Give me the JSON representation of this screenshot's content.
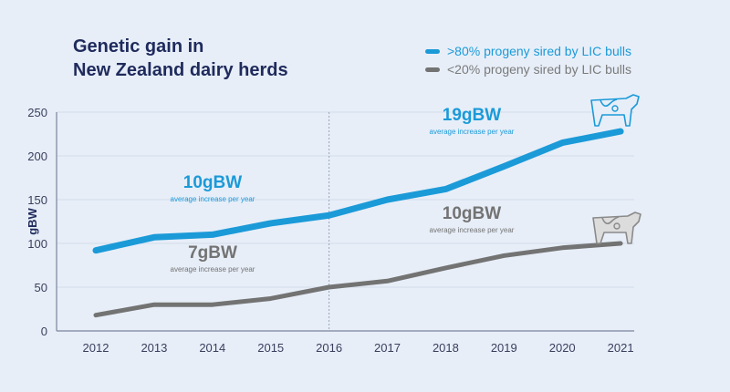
{
  "chart_data": {
    "type": "line",
    "title": "Genetic gain in New Zealand dairy herds",
    "title_lines": [
      "Genetic gain in",
      "New Zealand dairy herds"
    ],
    "xlabel": "",
    "ylabel": "gBW",
    "ylim": [
      0,
      250
    ],
    "yticks": [
      0,
      50,
      100,
      150,
      200,
      250
    ],
    "x": [
      2012,
      2013,
      2014,
      2015,
      2016,
      2017,
      2018,
      2019,
      2020,
      2021
    ],
    "legend_position": "top-right",
    "grid": true,
    "reference_line_x": 2016,
    "series": [
      {
        "name": ">80% progeny sired by LIC bulls",
        "color": "#1b9ad8",
        "values": [
          92,
          107,
          110,
          123,
          132,
          150,
          162,
          188,
          215,
          228
        ]
      },
      {
        "name": "<20% progeny sired by LIC bulls",
        "color": "#737373",
        "values": [
          18,
          30,
          30,
          37,
          50,
          57,
          72,
          86,
          95,
          100
        ]
      }
    ],
    "annotations": [
      {
        "value": "10gBW",
        "sub": "average increase per year",
        "series": 0,
        "period": "2012-2016"
      },
      {
        "value": "7gBW",
        "sub": "average increase per year",
        "series": 1,
        "period": "2012-2016"
      },
      {
        "value": "19gBW",
        "sub": "average increase per year",
        "series": 0,
        "period": "2016-2021"
      },
      {
        "value": "10gBW",
        "sub": "average increase per year",
        "series": 1,
        "period": "2016-2021"
      }
    ]
  }
}
